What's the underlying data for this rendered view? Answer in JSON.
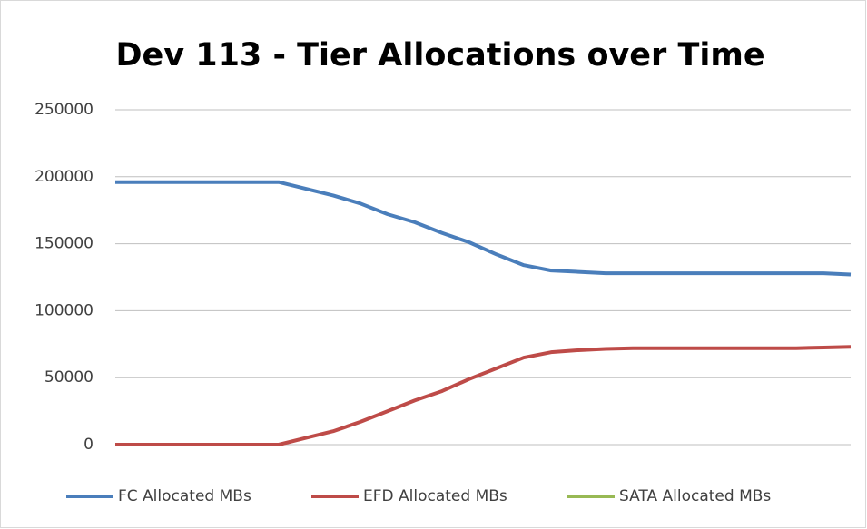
{
  "chart_data": {
    "type": "line",
    "title": "Dev 113 - Tier Allocations over Time",
    "categories": [
      null,
      null,
      null,
      null,
      null,
      null,
      null,
      null,
      null,
      null,
      null,
      null,
      null,
      null,
      null,
      null,
      null,
      null,
      null,
      null,
      null,
      null,
      null,
      null,
      null,
      null,
      null,
      null
    ],
    "series": [
      {
        "name": "FC Allocated MBs",
        "color": "#4a7ebb",
        "values": [
          196000,
          196000,
          196000,
          196000,
          196000,
          196000,
          196000,
          191000,
          186000,
          180000,
          172000,
          166000,
          158000,
          151000,
          142000,
          134000,
          130000,
          129000,
          128000,
          128000,
          128000,
          128000,
          128000,
          128000,
          128000,
          128000,
          128000,
          127000
        ]
      },
      {
        "name": "EFD Allocated MBs",
        "color": "#be4b48",
        "values": [
          0,
          0,
          0,
          0,
          0,
          0,
          0,
          5000,
          10000,
          17000,
          25000,
          33000,
          40000,
          49000,
          57000,
          65000,
          69000,
          70500,
          71500,
          72000,
          72000,
          72000,
          72000,
          72000,
          72000,
          72000,
          72500,
          73000
        ]
      },
      {
        "name": "SATA Allocated MBs",
        "color": "#98b954",
        "values": [
          null,
          null,
          null,
          null,
          null,
          null,
          null,
          null,
          null,
          null,
          null,
          null,
          null,
          null,
          null,
          null,
          null,
          null,
          null,
          null,
          null,
          null,
          null,
          null,
          null,
          null,
          null,
          null
        ]
      }
    ],
    "ylim": [
      0,
      250000
    ],
    "yticks": [
      0,
      50000,
      100000,
      150000,
      200000,
      250000
    ],
    "grid": true,
    "legend": "bottom"
  }
}
